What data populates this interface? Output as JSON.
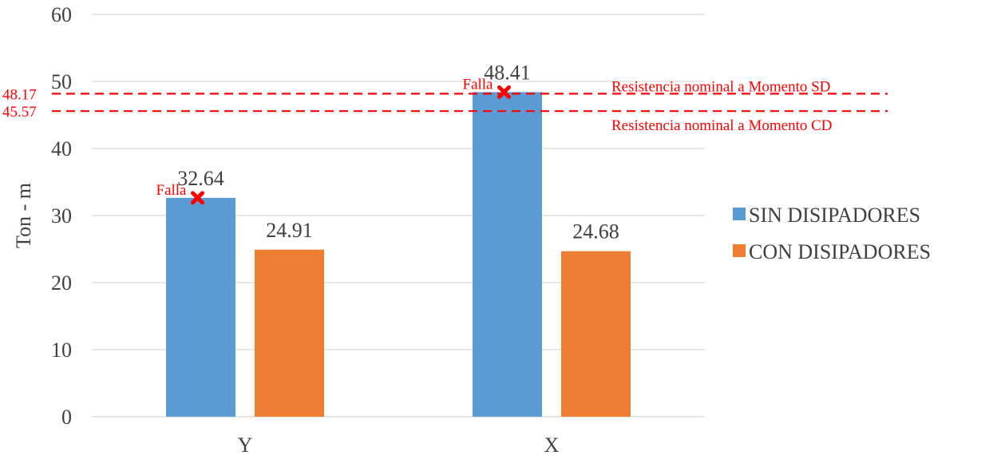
{
  "chart_data": {
    "type": "bar",
    "title": "",
    "xlabel": "",
    "ylabel": "Ton - m",
    "ylim": [
      0,
      60
    ],
    "yticks": [
      0,
      10,
      20,
      30,
      40,
      50,
      60
    ],
    "grid": true,
    "legend_position": "right",
    "categories": [
      "Y",
      "X"
    ],
    "series": [
      {
        "name": "SIN DISIPADORES",
        "values": [
          32.64,
          48.41
        ],
        "color": "#5b9bd5"
      },
      {
        "name": "CON DISIPADORES",
        "values": [
          24.91,
          24.68
        ],
        "color": "#ed7d31"
      }
    ],
    "value_labels": [
      [
        "32.64",
        "48.41"
      ],
      [
        "24.91",
        "24.68"
      ]
    ],
    "reference_lines": [
      {
        "value": 48.17,
        "value_label": "48.17",
        "label": "Resistencia nominal a Momento SD",
        "label_side": "above",
        "color": "#ff0000",
        "style": "dashed"
      },
      {
        "value": 45.57,
        "value_label": "45.57",
        "label": "Resistencia nominal a Momento CD",
        "label_side": "below",
        "color": "#ff0000",
        "style": "dashed"
      }
    ],
    "failure_markers": [
      {
        "series": 0,
        "category": 0,
        "label": "Falla",
        "color": "#ff0000"
      },
      {
        "series": 0,
        "category": 1,
        "label": "Falla",
        "color": "#ff0000"
      }
    ]
  }
}
